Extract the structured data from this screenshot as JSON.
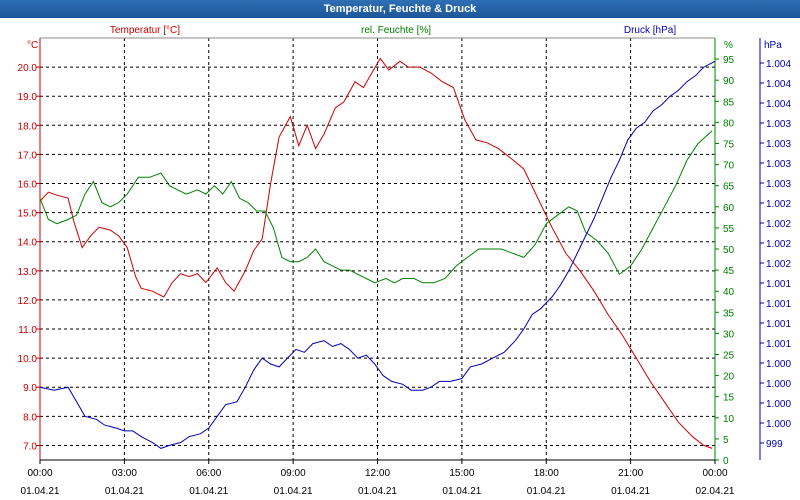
{
  "window": {
    "title": "Temperatur, Feuchte & Druck"
  },
  "colors": {
    "temperature": "#cc0000",
    "humidity": "#008000",
    "pressure": "#0000b0",
    "grid": "#000000",
    "text": "#000000",
    "titlebar": "#1f5aa0"
  },
  "chart_data": {
    "type": "line",
    "title": "Temperatur, Feuchte & Druck",
    "grid": true,
    "x": {
      "ticks": [
        {
          "time": "00:00",
          "date": "01.04.21"
        },
        {
          "time": "03:00",
          "date": "01.04.21"
        },
        {
          "time": "06:00",
          "date": "01.04.21"
        },
        {
          "time": "09:00",
          "date": "01.04.21"
        },
        {
          "time": "12:00",
          "date": "01.04.21"
        },
        {
          "time": "15:00",
          "date": "01.04.21"
        },
        {
          "time": "18:00",
          "date": "01.04.21"
        },
        {
          "time": "21:00",
          "date": "01.04.21"
        },
        {
          "time": "00:00",
          "date": "02.04.21"
        }
      ],
      "range_hours": [
        0,
        24
      ]
    },
    "axes": {
      "temperature": {
        "label": "Temperatur [°C]",
        "unit": "°C",
        "range": [
          6.5,
          21.0
        ],
        "ticks": [
          "7.0",
          "8.0",
          "9.0",
          "10.0",
          "11.0",
          "12.0",
          "13.0",
          "14.0",
          "15.0",
          "16.0",
          "17.0",
          "18.0",
          "19.0",
          "20.0"
        ]
      },
      "humidity": {
        "label": "rel. Feuchte [%]",
        "unit": "%",
        "range": [
          0,
          100
        ],
        "ticks": [
          "0",
          "5",
          "10",
          "15",
          "20",
          "25",
          "30",
          "35",
          "40",
          "45",
          "50",
          "55",
          "60",
          "65",
          "70",
          "75",
          "80",
          "85",
          "90",
          "95"
        ]
      },
      "pressure": {
        "label": "Druck [hPa]",
        "unit": "hPa",
        "ticks": [
          "999",
          "1.000",
          "1.000",
          "1.000",
          "1.000",
          "1.001",
          "1.001",
          "1.001",
          "1.001",
          "1.002",
          "1.002",
          "1.002",
          "1.002",
          "1.003",
          "1.003",
          "1.003",
          "1.003",
          "1.004",
          "1.004",
          "1.004"
        ]
      }
    },
    "series": [
      {
        "name": "Temperatur [°C]",
        "axis": "temperature",
        "points": [
          [
            0,
            15.4
          ],
          [
            0.3,
            15.7
          ],
          [
            0.6,
            15.6
          ],
          [
            1.0,
            15.5
          ],
          [
            1.2,
            14.7
          ],
          [
            1.5,
            13.8
          ],
          [
            1.8,
            14.2
          ],
          [
            2.1,
            14.5
          ],
          [
            2.5,
            14.4
          ],
          [
            2.8,
            14.2
          ],
          [
            3.1,
            13.8
          ],
          [
            3.4,
            12.8
          ],
          [
            3.6,
            12.4
          ],
          [
            4.0,
            12.3
          ],
          [
            4.4,
            12.1
          ],
          [
            4.7,
            12.6
          ],
          [
            5.0,
            12.9
          ],
          [
            5.3,
            12.8
          ],
          [
            5.6,
            12.9
          ],
          [
            5.9,
            12.6
          ],
          [
            6.3,
            13.1
          ],
          [
            6.6,
            12.6
          ],
          [
            6.9,
            12.3
          ],
          [
            7.3,
            13.0
          ],
          [
            7.6,
            13.7
          ],
          [
            7.9,
            14.1
          ],
          [
            8.2,
            16.0
          ],
          [
            8.5,
            17.6
          ],
          [
            8.9,
            18.3
          ],
          [
            9.2,
            17.3
          ],
          [
            9.5,
            18.0
          ],
          [
            9.8,
            17.2
          ],
          [
            10.1,
            17.7
          ],
          [
            10.5,
            18.6
          ],
          [
            10.8,
            18.8
          ],
          [
            11.2,
            19.5
          ],
          [
            11.5,
            19.3
          ],
          [
            11.8,
            19.8
          ],
          [
            12.1,
            20.3
          ],
          [
            12.4,
            19.9
          ],
          [
            12.8,
            20.2
          ],
          [
            13.1,
            20.0
          ],
          [
            13.5,
            20.0
          ],
          [
            13.9,
            19.8
          ],
          [
            14.3,
            19.5
          ],
          [
            14.7,
            19.3
          ],
          [
            15.1,
            18.2
          ],
          [
            15.5,
            17.5
          ],
          [
            15.9,
            17.4
          ],
          [
            16.3,
            17.2
          ],
          [
            16.7,
            16.9
          ],
          [
            17.2,
            16.5
          ],
          [
            17.7,
            15.5
          ],
          [
            18.2,
            14.5
          ],
          [
            18.7,
            13.6
          ],
          [
            19.2,
            13.0
          ],
          [
            19.7,
            12.3
          ],
          [
            20.2,
            11.5
          ],
          [
            20.7,
            10.8
          ],
          [
            21.2,
            10.0
          ],
          [
            21.7,
            9.2
          ],
          [
            22.2,
            8.5
          ],
          [
            22.7,
            7.8
          ],
          [
            23.2,
            7.3
          ],
          [
            23.6,
            7.0
          ],
          [
            23.9,
            6.9
          ]
        ]
      },
      {
        "name": "rel. Feuchte [%]",
        "axis": "humidity",
        "points": [
          [
            0,
            62
          ],
          [
            0.3,
            57
          ],
          [
            0.6,
            56
          ],
          [
            1.0,
            57
          ],
          [
            1.3,
            58
          ],
          [
            1.6,
            63
          ],
          [
            1.9,
            66
          ],
          [
            2.2,
            61
          ],
          [
            2.5,
            60
          ],
          [
            2.8,
            61
          ],
          [
            3.1,
            63
          ],
          [
            3.5,
            67
          ],
          [
            3.9,
            67
          ],
          [
            4.3,
            68
          ],
          [
            4.6,
            65
          ],
          [
            4.9,
            64
          ],
          [
            5.2,
            63
          ],
          [
            5.6,
            64
          ],
          [
            5.9,
            63
          ],
          [
            6.2,
            65
          ],
          [
            6.5,
            63
          ],
          [
            6.8,
            66
          ],
          [
            7.1,
            62
          ],
          [
            7.4,
            61
          ],
          [
            7.7,
            59
          ],
          [
            8.0,
            59
          ],
          [
            8.3,
            55
          ],
          [
            8.6,
            48
          ],
          [
            8.9,
            47
          ],
          [
            9.2,
            47
          ],
          [
            9.5,
            48
          ],
          [
            9.8,
            50
          ],
          [
            10.1,
            47
          ],
          [
            10.4,
            46
          ],
          [
            10.7,
            45
          ],
          [
            11.0,
            45
          ],
          [
            11.3,
            44
          ],
          [
            11.6,
            43
          ],
          [
            11.9,
            42
          ],
          [
            12.3,
            43
          ],
          [
            12.6,
            42
          ],
          [
            12.9,
            43
          ],
          [
            13.3,
            43
          ],
          [
            13.6,
            42
          ],
          [
            14.0,
            42
          ],
          [
            14.4,
            43
          ],
          [
            14.8,
            46
          ],
          [
            15.2,
            48
          ],
          [
            15.6,
            50
          ],
          [
            16.0,
            50
          ],
          [
            16.4,
            50
          ],
          [
            16.8,
            49
          ],
          [
            17.2,
            48
          ],
          [
            17.6,
            51
          ],
          [
            18.0,
            56
          ],
          [
            18.4,
            58
          ],
          [
            18.8,
            60
          ],
          [
            19.1,
            59
          ],
          [
            19.4,
            54
          ],
          [
            19.8,
            52
          ],
          [
            20.2,
            49
          ],
          [
            20.6,
            44
          ],
          [
            21.0,
            46
          ],
          [
            21.4,
            50
          ],
          [
            21.8,
            55
          ],
          [
            22.2,
            60
          ],
          [
            22.6,
            65
          ],
          [
            23.0,
            71
          ],
          [
            23.4,
            75
          ],
          [
            23.9,
            78
          ]
        ]
      },
      {
        "name": "Druck [hPa]",
        "axis": "pressure",
        "points": [
          [
            0,
            9.0
          ],
          [
            0.5,
            8.9
          ],
          [
            1.0,
            9.0
          ],
          [
            1.3,
            8.5
          ],
          [
            1.6,
            8.0
          ],
          [
            2.0,
            7.9
          ],
          [
            2.3,
            7.7
          ],
          [
            2.7,
            7.6
          ],
          [
            3.0,
            7.5
          ],
          [
            3.3,
            7.5
          ],
          [
            3.6,
            7.3
          ],
          [
            4.0,
            7.1
          ],
          [
            4.3,
            6.9
          ],
          [
            4.6,
            7.0
          ],
          [
            5.0,
            7.1
          ],
          [
            5.3,
            7.3
          ],
          [
            5.7,
            7.4
          ],
          [
            6.0,
            7.6
          ],
          [
            6.3,
            8.0
          ],
          [
            6.6,
            8.4
          ],
          [
            7.0,
            8.5
          ],
          [
            7.3,
            9.0
          ],
          [
            7.6,
            9.6
          ],
          [
            7.9,
            10.0
          ],
          [
            8.2,
            9.8
          ],
          [
            8.5,
            9.7
          ],
          [
            8.8,
            10.0
          ],
          [
            9.1,
            10.3
          ],
          [
            9.4,
            10.2
          ],
          [
            9.7,
            10.5
          ],
          [
            10.1,
            10.6
          ],
          [
            10.4,
            10.4
          ],
          [
            10.7,
            10.5
          ],
          [
            11.0,
            10.3
          ],
          [
            11.3,
            10.0
          ],
          [
            11.6,
            10.1
          ],
          [
            11.9,
            9.8
          ],
          [
            12.2,
            9.4
          ],
          [
            12.5,
            9.2
          ],
          [
            12.9,
            9.1
          ],
          [
            13.2,
            8.9
          ],
          [
            13.6,
            8.9
          ],
          [
            13.9,
            9.0
          ],
          [
            14.2,
            9.2
          ],
          [
            14.6,
            9.2
          ],
          [
            15.0,
            9.3
          ],
          [
            15.3,
            9.7
          ],
          [
            15.7,
            9.8
          ],
          [
            16.1,
            10.0
          ],
          [
            16.5,
            10.2
          ],
          [
            16.9,
            10.6
          ],
          [
            17.2,
            11.0
          ],
          [
            17.5,
            11.5
          ],
          [
            17.8,
            11.7
          ],
          [
            18.2,
            12.1
          ],
          [
            18.5,
            12.5
          ],
          [
            18.8,
            13.0
          ],
          [
            19.1,
            13.6
          ],
          [
            19.4,
            14.2
          ],
          [
            19.7,
            14.8
          ],
          [
            20.0,
            15.5
          ],
          [
            20.3,
            16.2
          ],
          [
            20.6,
            16.8
          ],
          [
            20.9,
            17.5
          ],
          [
            21.2,
            17.9
          ],
          [
            21.5,
            18.1
          ],
          [
            21.8,
            18.5
          ],
          [
            22.1,
            18.7
          ],
          [
            22.4,
            19.0
          ],
          [
            22.7,
            19.2
          ],
          [
            23.0,
            19.5
          ],
          [
            23.3,
            19.7
          ],
          [
            23.6,
            20.0
          ],
          [
            24.0,
            20.2
          ]
        ]
      }
    ]
  }
}
